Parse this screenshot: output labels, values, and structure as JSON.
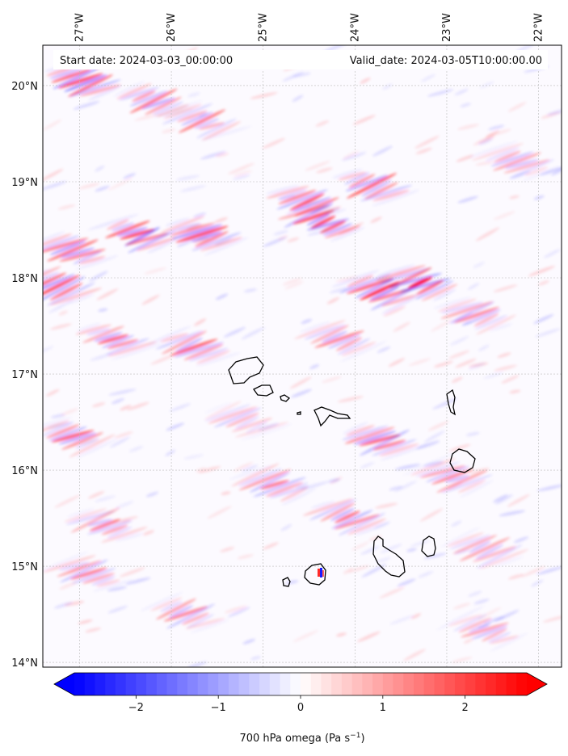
{
  "map": {
    "header_left": "Start date: 2024-03-03_00:00:00",
    "header_right": "Valid_date: 2024-03-05T10:00:00.00",
    "lon_labels": [
      "27°W",
      "26°W",
      "25°W",
      "24°W",
      "23°W",
      "22°W"
    ],
    "lat_labels": [
      "20°N",
      "19°N",
      "18°N",
      "17°N",
      "16°N",
      "15°N",
      "14°N"
    ],
    "extent": {
      "lon_min": -27.4,
      "lon_max": -21.75,
      "lat_min": 13.95,
      "lat_max": 20.42
    },
    "gridlines": true,
    "colors": {
      "negative": "#0000ff",
      "neutral": "#ffffff",
      "positive": "#ff0000",
      "coast": "#000000"
    }
  },
  "colorbar": {
    "label_prefix": "700 hPa omega (Pa s",
    "label_exp": "−1",
    "label_suffix": ")",
    "vmin": -2.75,
    "vmax": 2.75,
    "ticks": [
      "−2",
      "−1",
      "0",
      "1",
      "2"
    ],
    "tick_values": [
      -2,
      -1,
      0,
      1,
      2
    ],
    "extend": "both",
    "colormap": "bwr"
  }
}
